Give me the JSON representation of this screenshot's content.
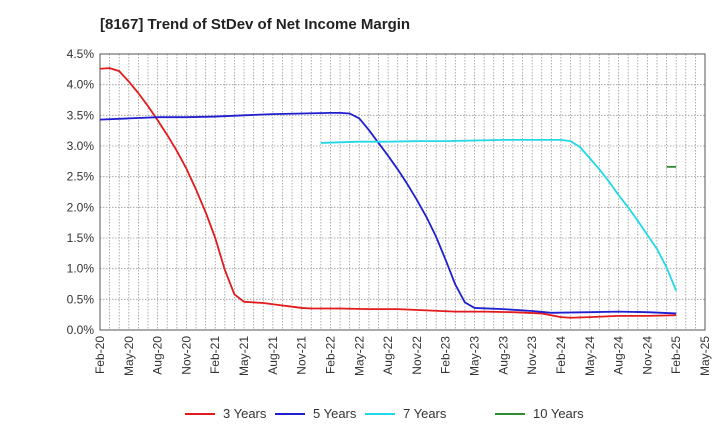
{
  "chart_data": {
    "type": "line",
    "title": "[8167]  Trend of StDev of Net Income Margin",
    "xlabel": "",
    "ylabel": "",
    "x_ticks": [
      "Feb-20",
      "May-20",
      "Aug-20",
      "Nov-20",
      "Feb-21",
      "May-21",
      "Aug-21",
      "Nov-21",
      "Feb-22",
      "May-22",
      "Aug-22",
      "Nov-22",
      "Feb-23",
      "May-23",
      "Aug-23",
      "Nov-23",
      "Feb-24",
      "May-24",
      "Aug-24",
      "Nov-24",
      "Feb-25",
      "May-25"
    ],
    "y_ticks": [
      "0.0%",
      "0.5%",
      "1.0%",
      "1.5%",
      "2.0%",
      "2.5%",
      "3.0%",
      "3.5%",
      "4.0%",
      "4.5%"
    ],
    "ylim": [
      0,
      4.5
    ],
    "grid": true,
    "legend_position": "bottom",
    "series": [
      {
        "name": "3 Years",
        "color": "#e31a1c",
        "points": [
          [
            "2020-02",
            4.26
          ],
          [
            "2020-03",
            4.27
          ],
          [
            "2020-04",
            4.22
          ],
          [
            "2020-05",
            4.05
          ],
          [
            "2020-06",
            3.86
          ],
          [
            "2020-07",
            3.65
          ],
          [
            "2020-08",
            3.42
          ],
          [
            "2020-09",
            3.18
          ],
          [
            "2020-10",
            2.92
          ],
          [
            "2020-11",
            2.63
          ],
          [
            "2020-12",
            2.29
          ],
          [
            "2021-01",
            1.92
          ],
          [
            "2021-02",
            1.5
          ],
          [
            "2021-03",
            0.98
          ],
          [
            "2021-04",
            0.58
          ],
          [
            "2021-05",
            0.46
          ],
          [
            "2021-06",
            0.45
          ],
          [
            "2021-07",
            0.44
          ],
          [
            "2021-08",
            0.42
          ],
          [
            "2021-09",
            0.4
          ],
          [
            "2021-10",
            0.38
          ],
          [
            "2021-11",
            0.36
          ],
          [
            "2021-12",
            0.35
          ],
          [
            "2022-03",
            0.35
          ],
          [
            "2022-06",
            0.34
          ],
          [
            "2022-09",
            0.34
          ],
          [
            "2022-12",
            0.32
          ],
          [
            "2023-03",
            0.3
          ],
          [
            "2023-06",
            0.3
          ],
          [
            "2023-09",
            0.29
          ],
          [
            "2023-12",
            0.27
          ],
          [
            "2024-02",
            0.21
          ],
          [
            "2024-03",
            0.2
          ],
          [
            "2024-05",
            0.21
          ],
          [
            "2024-08",
            0.23
          ],
          [
            "2024-11",
            0.23
          ],
          [
            "2025-02",
            0.24
          ]
        ]
      },
      {
        "name": "5 Years",
        "color": "#1f1fcf",
        "points": [
          [
            "2020-02",
            3.43
          ],
          [
            "2020-05",
            3.45
          ],
          [
            "2020-08",
            3.47
          ],
          [
            "2020-11",
            3.47
          ],
          [
            "2021-02",
            3.48
          ],
          [
            "2021-05",
            3.5
          ],
          [
            "2021-08",
            3.52
          ],
          [
            "2021-11",
            3.53
          ],
          [
            "2022-02",
            3.54
          ],
          [
            "2022-03",
            3.54
          ],
          [
            "2022-04",
            3.53
          ],
          [
            "2022-05",
            3.45
          ],
          [
            "2022-06",
            3.26
          ],
          [
            "2022-07",
            3.05
          ],
          [
            "2022-08",
            2.84
          ],
          [
            "2022-09",
            2.62
          ],
          [
            "2022-10",
            2.38
          ],
          [
            "2022-11",
            2.12
          ],
          [
            "2022-12",
            1.84
          ],
          [
            "2023-01",
            1.52
          ],
          [
            "2023-02",
            1.14
          ],
          [
            "2023-03",
            0.74
          ],
          [
            "2023-04",
            0.45
          ],
          [
            "2023-05",
            0.36
          ],
          [
            "2023-08",
            0.34
          ],
          [
            "2023-11",
            0.31
          ],
          [
            "2024-01",
            0.28
          ],
          [
            "2024-05",
            0.29
          ],
          [
            "2024-08",
            0.3
          ],
          [
            "2024-11",
            0.29
          ],
          [
            "2025-02",
            0.27
          ]
        ]
      },
      {
        "name": "7 Years",
        "color": "#22d8e6",
        "points": [
          [
            "2022-01",
            3.05
          ],
          [
            "2022-05",
            3.07
          ],
          [
            "2022-08",
            3.07
          ],
          [
            "2022-11",
            3.08
          ],
          [
            "2023-02",
            3.08
          ],
          [
            "2023-05",
            3.09
          ],
          [
            "2023-08",
            3.1
          ],
          [
            "2023-11",
            3.1
          ],
          [
            "2024-02",
            3.1
          ],
          [
            "2024-03",
            3.08
          ],
          [
            "2024-04",
            2.98
          ],
          [
            "2024-05",
            2.8
          ],
          [
            "2024-06",
            2.62
          ],
          [
            "2024-07",
            2.42
          ],
          [
            "2024-08",
            2.2
          ],
          [
            "2024-09",
            2.0
          ],
          [
            "2024-10",
            1.78
          ],
          [
            "2024-11",
            1.55
          ],
          [
            "2024-12",
            1.32
          ],
          [
            "2025-01",
            1.02
          ],
          [
            "2025-02",
            0.64
          ]
        ]
      },
      {
        "name": "10 Years",
        "color": "#2e8b2e",
        "points": [
          [
            "2025-01",
            2.66
          ],
          [
            "2025-02",
            2.66
          ]
        ]
      }
    ]
  }
}
